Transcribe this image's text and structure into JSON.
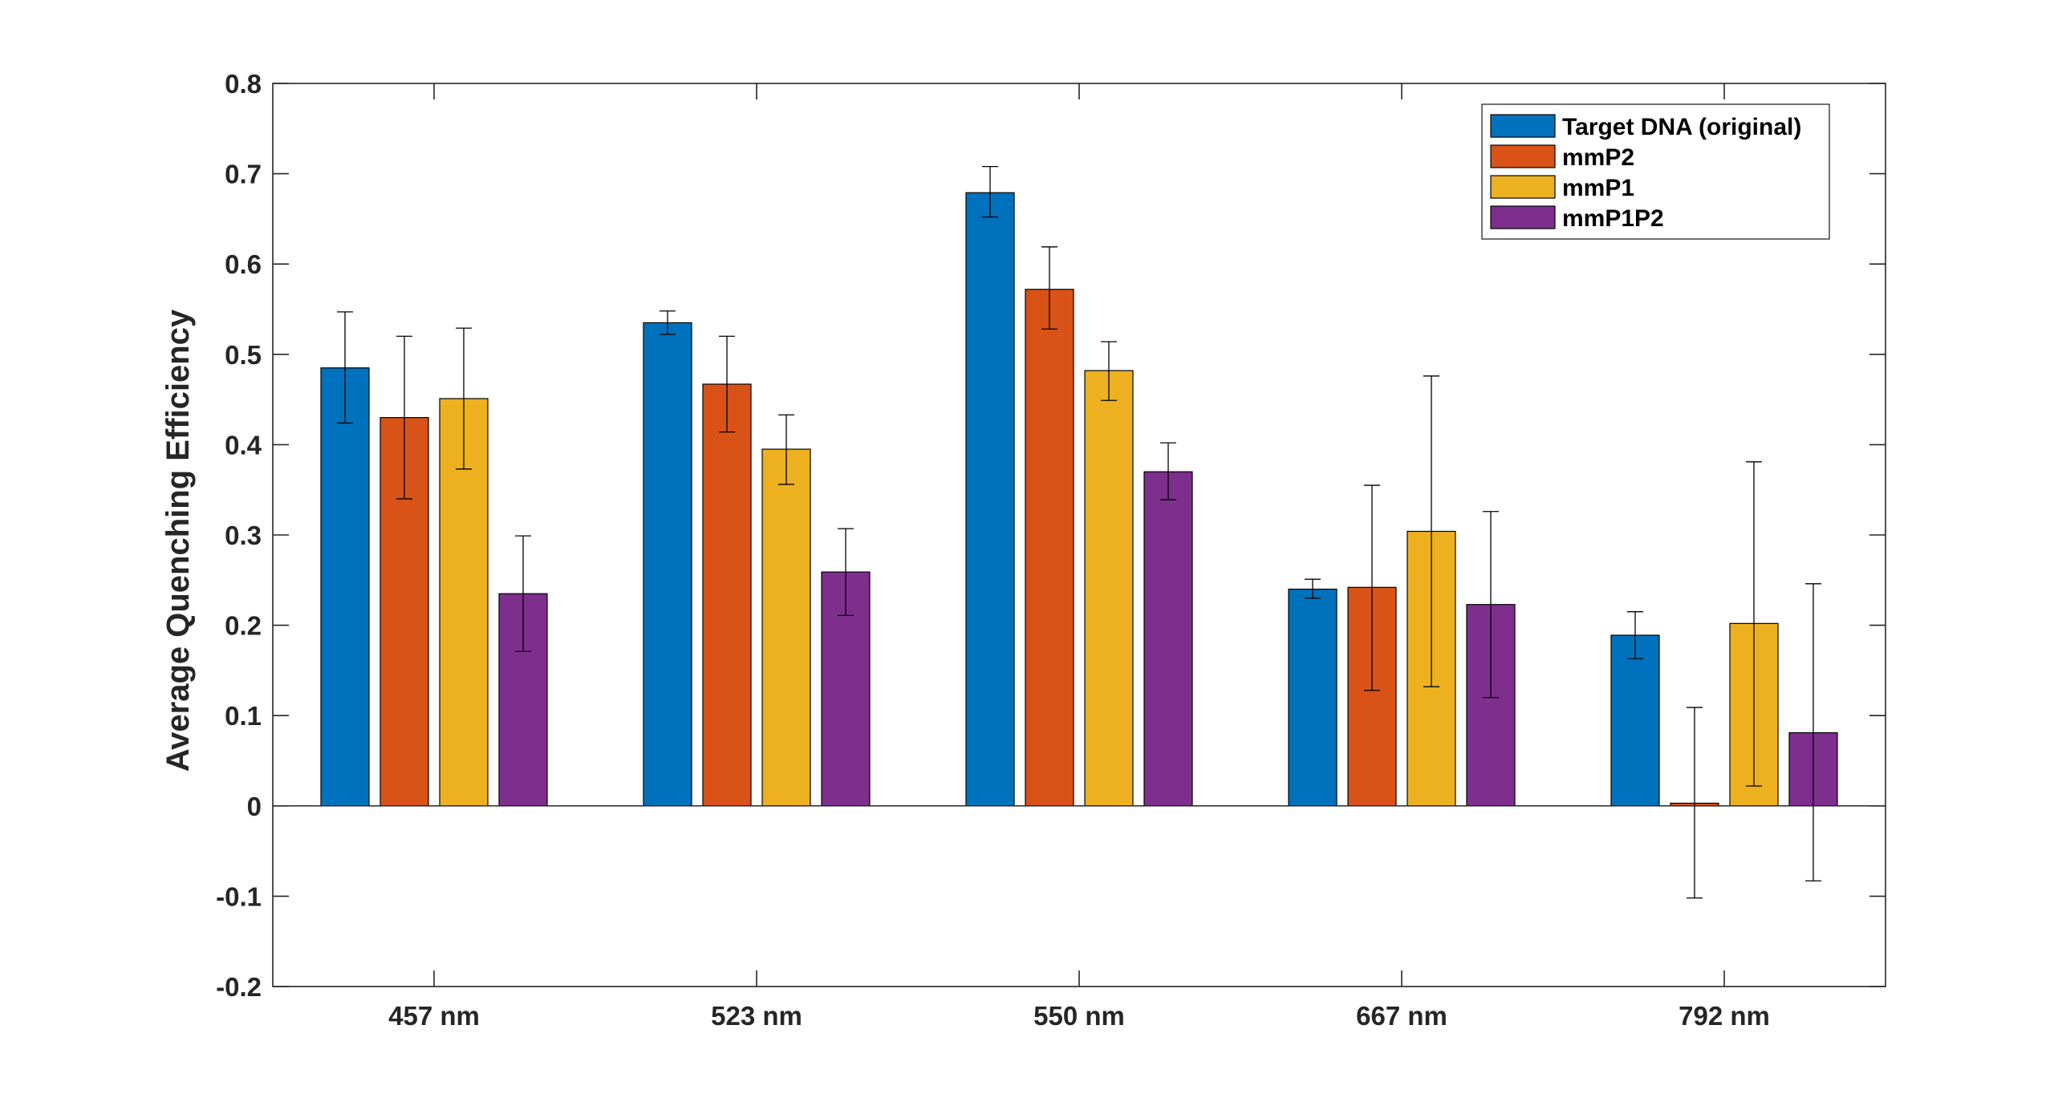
{
  "chart_data": {
    "type": "bar",
    "title": "",
    "xlabel": "",
    "ylabel": "Average Quenching Efficiency",
    "ylim": [
      -0.2,
      0.8
    ],
    "yticks": [
      -0.2,
      -0.1,
      0,
      0.1,
      0.2,
      0.3,
      0.4,
      0.5,
      0.6,
      0.7,
      0.8
    ],
    "ytick_labels": [
      "-0.2",
      "-0.1",
      "0",
      "0.1",
      "0.2",
      "0.3",
      "0.4",
      "0.5",
      "0.6",
      "0.7",
      "0.8"
    ],
    "categories": [
      "457 nm",
      "523 nm",
      "550 nm",
      "667 nm",
      "792 nm"
    ],
    "series": [
      {
        "name": "Target DNA (original)",
        "color": "#0072BD",
        "values": [
          0.485,
          0.535,
          0.679,
          0.24,
          0.189
        ],
        "error_low": [
          0.424,
          0.522,
          0.652,
          0.23,
          0.163
        ],
        "error_high": [
          0.547,
          0.548,
          0.708,
          0.251,
          0.215
        ]
      },
      {
        "name": "mmP2",
        "color": "#D95319",
        "values": [
          0.43,
          0.467,
          0.572,
          0.242,
          0.003
        ],
        "error_low": [
          0.34,
          0.414,
          0.528,
          0.128,
          -0.102
        ],
        "error_high": [
          0.52,
          0.52,
          0.619,
          0.355,
          0.109
        ]
      },
      {
        "name": "mmP1",
        "color": "#EDB120",
        "values": [
          0.451,
          0.395,
          0.482,
          0.304,
          0.202
        ],
        "error_low": [
          0.373,
          0.356,
          0.449,
          0.132,
          0.022
        ],
        "error_high": [
          0.529,
          0.433,
          0.514,
          0.476,
          0.381
        ]
      },
      {
        "name": "mmP1P2",
        "color": "#7E2F8E",
        "values": [
          0.235,
          0.259,
          0.37,
          0.223,
          0.081
        ],
        "error_low": [
          0.171,
          0.211,
          0.339,
          0.12,
          -0.083
        ],
        "error_high": [
          0.299,
          0.307,
          0.402,
          0.326,
          0.246
        ]
      }
    ],
    "legend": {
      "position": "top-right",
      "entries": [
        "Target DNA (original)",
        "mmP2",
        "mmP1",
        "mmP1P2"
      ]
    },
    "grid": false,
    "box": true
  }
}
